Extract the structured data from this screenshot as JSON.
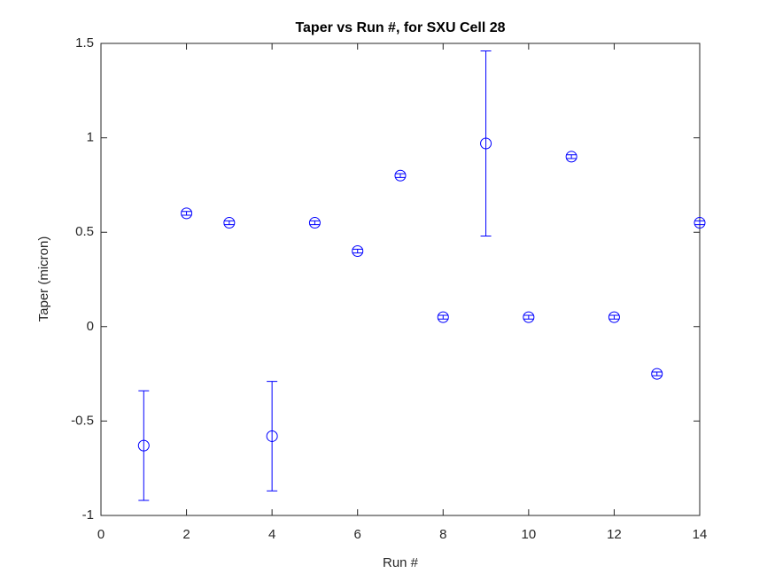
{
  "chart_data": {
    "type": "errorbar",
    "title": "Taper vs Run #, for SXU Cell 28",
    "xlabel": "Run #",
    "ylabel": "Taper (micron)",
    "x": [
      1,
      2,
      3,
      4,
      5,
      6,
      7,
      8,
      9,
      10,
      11,
      12,
      13,
      14
    ],
    "series": [
      {
        "color": "#0000ff",
        "values": [
          -0.63,
          0.6,
          0.55,
          -0.58,
          0.55,
          0.4,
          0.8,
          0.05,
          0.97,
          0.05,
          0.9,
          0.05,
          -0.25,
          0.55
        ],
        "errors": [
          0.29,
          0.01,
          0.01,
          0.29,
          0.01,
          0.01,
          0.01,
          0.01,
          0.49,
          0.01,
          0.01,
          0.01,
          0.01,
          0.01
        ]
      }
    ],
    "xlim": [
      0,
      14
    ],
    "xticks": [
      0,
      2,
      4,
      6,
      8,
      10,
      12,
      14
    ],
    "ylim": [
      -1,
      1.5
    ],
    "yticks": [
      -1,
      -0.5,
      0,
      0.5,
      1,
      1.5
    ]
  }
}
